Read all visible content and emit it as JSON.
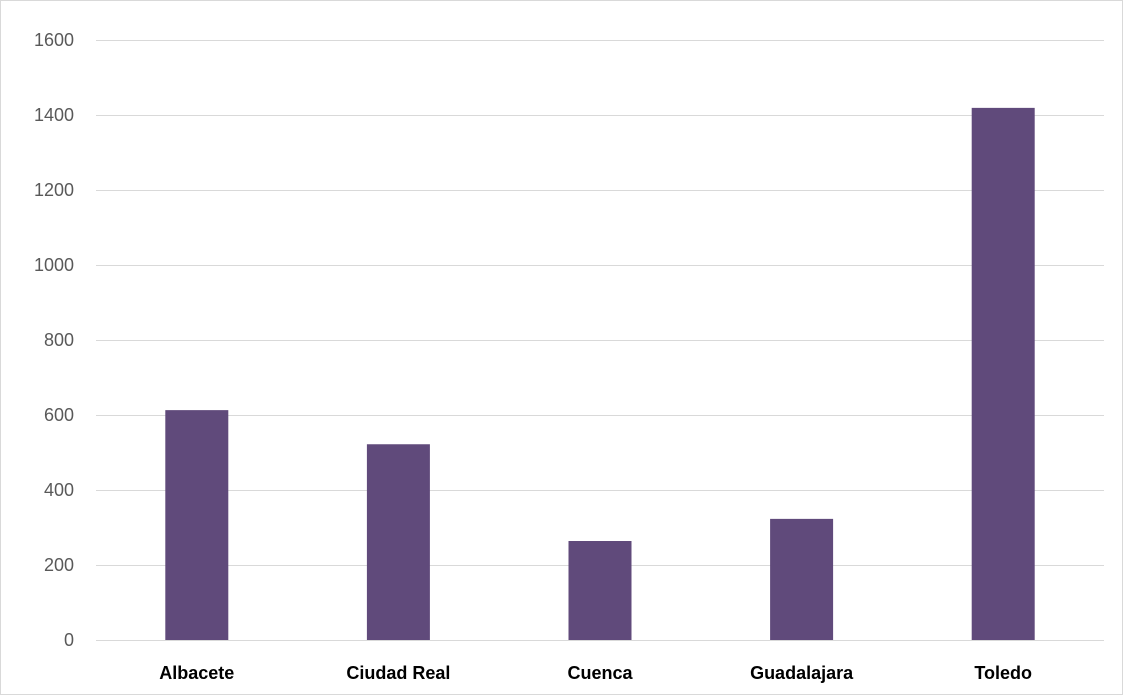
{
  "chart_data": {
    "type": "bar",
    "title": "",
    "xlabel": "",
    "ylabel": "",
    "categories": [
      "Albacete",
      "Ciudad Real",
      "Cuenca",
      "Guadalajara",
      "Toledo"
    ],
    "values": [
      613,
      522,
      264,
      323,
      1419
    ],
    "ylim": [
      0,
      1600
    ],
    "yticks": [
      0,
      200,
      400,
      600,
      800,
      1000,
      1200,
      1400,
      1600
    ],
    "yticks_labels": [
      "0",
      "200",
      "400",
      "600",
      "800",
      "1000",
      "1200",
      "1400",
      "1600"
    ],
    "grid": true,
    "legend": "none",
    "colors": {
      "bar": "#604a7b",
      "grid": "#d9d9d9",
      "axis_text": "#595959",
      "category_text": "#000000"
    }
  }
}
